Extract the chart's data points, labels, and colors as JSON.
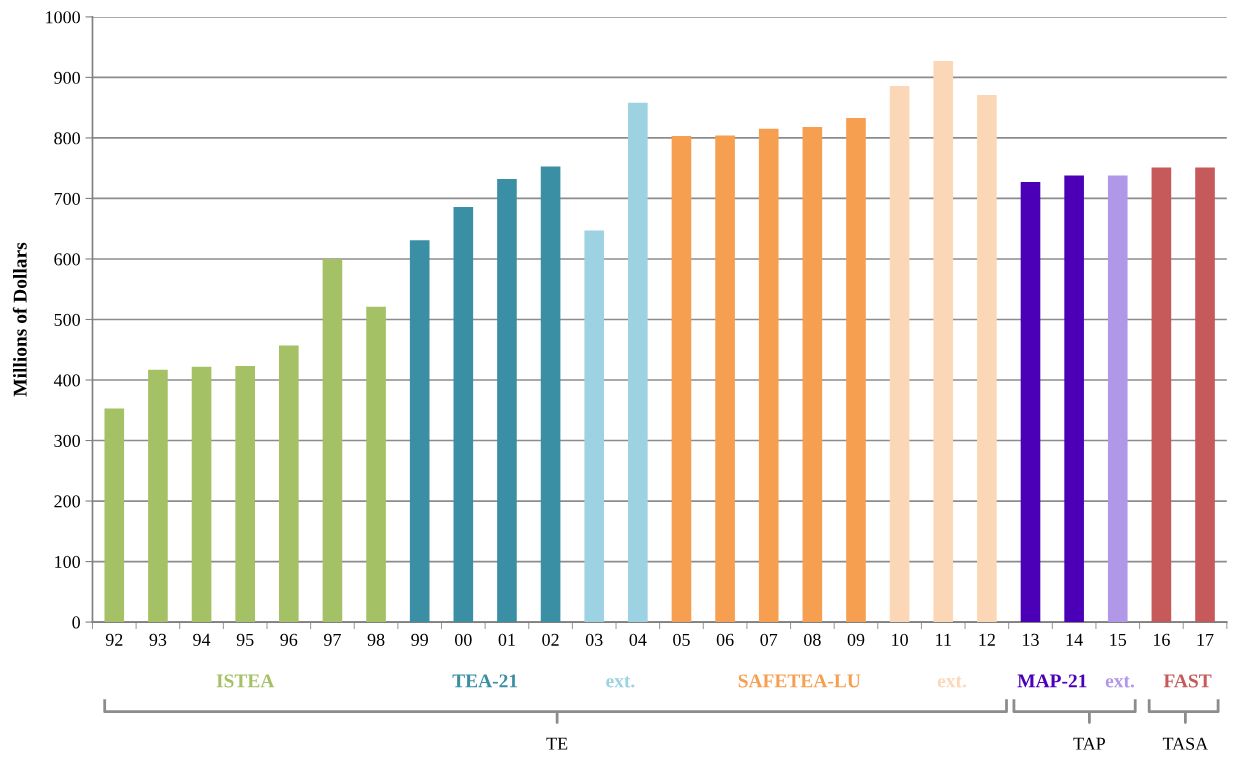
{
  "chart_data": {
    "type": "bar",
    "ylabel": "Millions of Dollars",
    "categories": [
      "92",
      "93",
      "94",
      "95",
      "96",
      "97",
      "98",
      "99",
      "00",
      "01",
      "02",
      "03",
      "04",
      "05",
      "06",
      "07",
      "08",
      "09",
      "10",
      "11",
      "12",
      "13",
      "14",
      "15",
      "16",
      "17"
    ],
    "values": [
      353,
      417,
      422,
      423,
      457,
      600,
      521,
      631,
      686,
      732,
      753,
      647,
      858,
      803,
      804,
      815,
      818,
      833,
      886,
      927,
      871,
      727,
      738,
      738,
      751,
      751
    ],
    "colors": [
      "#a5c165",
      "#a5c165",
      "#a5c165",
      "#a5c165",
      "#a5c165",
      "#a5c165",
      "#a5c165",
      "#3a8fa5",
      "#3a8fa5",
      "#3a8fa5",
      "#3a8fa5",
      "#9dd2e2",
      "#9dd2e2",
      "#f79f51",
      "#f79f51",
      "#f79f51",
      "#f79f51",
      "#f79f51",
      "#fbd7b8",
      "#fbd7b8",
      "#fbd7b8",
      "#4b00b8",
      "#4b00b8",
      "#b197e8",
      "#c65a5a",
      "#c65a5a"
    ],
    "ylim": [
      0,
      1000
    ],
    "yticks": [
      0,
      100,
      200,
      300,
      400,
      500,
      600,
      700,
      800,
      900,
      1000
    ],
    "grid": "y",
    "annotations": [
      "ISTEA",
      "TEA-21",
      "ext.",
      "SAFETEA-LU",
      "ext.",
      "MAP-21",
      "ext.",
      "FAST",
      "TE",
      "TAP",
      "TASA"
    ]
  }
}
